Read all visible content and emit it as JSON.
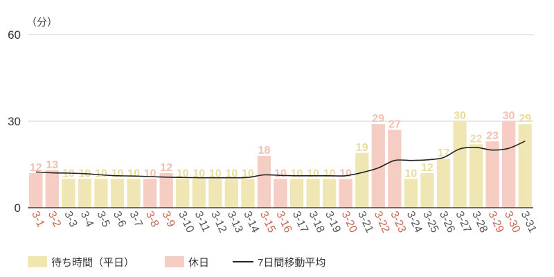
{
  "chart_data": {
    "type": "bar",
    "unit_label": "（分）",
    "ylim": [
      0,
      60
    ],
    "yticks": [
      0,
      30,
      60
    ],
    "grid": true,
    "legend_position": "bottom-left",
    "categories": [
      "3-1",
      "3-2",
      "3-3",
      "3-4",
      "3-5",
      "3-6",
      "3-7",
      "3-8",
      "3-9",
      "3-10",
      "3-11",
      "3-12",
      "3-13",
      "3-14",
      "3-15",
      "3-16",
      "3-17",
      "3-18",
      "3-19",
      "3-20",
      "3-21",
      "3-22",
      "3-23",
      "3-24",
      "3-25",
      "3-26",
      "3-27",
      "3-28",
      "3-29",
      "3-30",
      "3-31"
    ],
    "holiday": [
      true,
      true,
      false,
      false,
      false,
      false,
      false,
      true,
      true,
      false,
      false,
      false,
      false,
      false,
      true,
      true,
      false,
      false,
      false,
      true,
      false,
      true,
      true,
      false,
      false,
      false,
      false,
      false,
      true,
      true,
      false
    ],
    "values": [
      12,
      13,
      10,
      10,
      10,
      10,
      10,
      10,
      12,
      10,
      10,
      10,
      10,
      10,
      18,
      10,
      10,
      10,
      10,
      10,
      19,
      29,
      27,
      10,
      12,
      17,
      30,
      22,
      23,
      30,
      29
    ],
    "moving_average": [
      12.4,
      12.1,
      12.0,
      11.8,
      11.4,
      11.1,
      11.0,
      10.8,
      10.6,
      10.5,
      10.4,
      10.4,
      10.4,
      10.5,
      11.4,
      11.2,
      11.1,
      11.1,
      11.1,
      11.1,
      12.2,
      13.8,
      16.4,
      16.4,
      16.6,
      17.4,
      20.4,
      20.9,
      20.0,
      20.6,
      23.1
    ],
    "series": [
      {
        "name": "待ち時間（平日）",
        "color": "#efe6b4"
      },
      {
        "name": "休日",
        "color": "#f5cdc2"
      },
      {
        "name": "7日間移動平均",
        "color": "#222222"
      }
    ],
    "colors": {
      "weekday_bar": "#efe6b4",
      "holiday_bar": "#f5cdc2",
      "weekday_label": "#ebdba0",
      "holiday_label": "#f1c0b2",
      "weekday_tick": "#555555",
      "holiday_tick": "#c8664f",
      "grid": "#d0d0d0",
      "axis": "#222222"
    }
  }
}
